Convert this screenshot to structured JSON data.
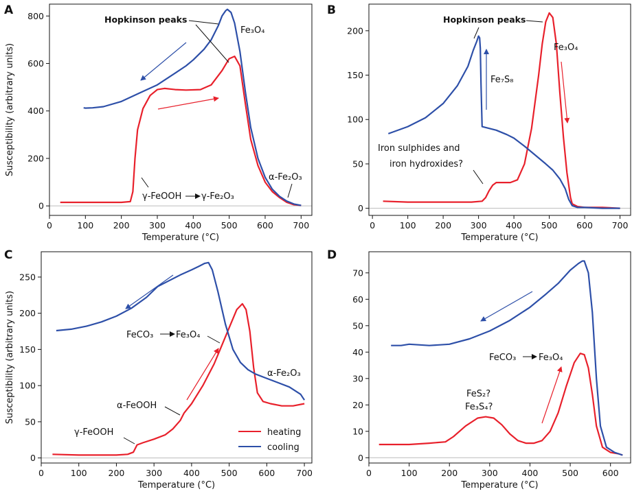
{
  "colors": {
    "heating": "#e8202b",
    "cooling": "#2d4fa8",
    "zero": "#bbbbbb"
  },
  "chart_data": [
    {
      "panel": "A",
      "type": "line",
      "xlabel": "Temperature (°C)",
      "ylabel": "Susceptibility (arbitrary units)",
      "xlim": [
        0,
        730
      ],
      "ylim": [
        -40,
        850
      ],
      "xticks": [
        0,
        100,
        200,
        300,
        400,
        500,
        600,
        700
      ],
      "yticks": [
        0,
        200,
        400,
        600,
        800
      ],
      "series": [
        {
          "name": "heating",
          "color": "heating",
          "x": [
            30,
            100,
            200,
            225,
            232,
            238,
            245,
            260,
            280,
            300,
            320,
            350,
            380,
            420,
            450,
            480,
            500,
            515,
            530,
            545,
            560,
            580,
            600,
            620,
            640,
            660,
            680,
            700
          ],
          "y": [
            15,
            15,
            15,
            18,
            60,
            200,
            320,
            410,
            465,
            490,
            495,
            490,
            488,
            490,
            510,
            570,
            620,
            630,
            590,
            430,
            280,
            170,
            100,
            60,
            35,
            15,
            5,
            2
          ]
        },
        {
          "name": "cooling",
          "color": "cooling",
          "x": [
            95,
            100,
            120,
            150,
            200,
            250,
            300,
            350,
            380,
            400,
            430,
            450,
            470,
            480,
            490,
            495,
            505,
            515,
            530,
            545,
            560,
            580,
            600,
            620,
            640,
            660,
            680,
            700
          ],
          "y": [
            413,
            412,
            413,
            418,
            440,
            475,
            510,
            560,
            590,
            615,
            660,
            700,
            760,
            800,
            822,
            828,
            815,
            770,
            650,
            480,
            330,
            200,
            120,
            70,
            40,
            20,
            8,
            2
          ]
        }
      ],
      "annotations": {
        "hopkinson": "Hopkinson peaks",
        "fe3o4": "Fe₃O₄",
        "gamma_label": "γ-FeOOH",
        "gamma_product": "γ-Fe₂O₃",
        "alpha": "α-Fe₂O₃"
      }
    },
    {
      "panel": "B",
      "type": "line",
      "xlabel": "Temperature (°C)",
      "ylabel": "",
      "xlim": [
        -10,
        730
      ],
      "ylim": [
        -8,
        230
      ],
      "xticks": [
        0,
        100,
        200,
        300,
        400,
        500,
        600,
        700
      ],
      "yticks": [
        0,
        50,
        100,
        150,
        200
      ],
      "series": [
        {
          "name": "heating",
          "color": "heating",
          "x": [
            30,
            100,
            200,
            280,
            310,
            320,
            330,
            340,
            350,
            370,
            390,
            410,
            430,
            450,
            470,
            480,
            490,
            500,
            510,
            520,
            530,
            540,
            550,
            560,
            565,
            580,
            600,
            650,
            700
          ],
          "y": [
            8,
            7,
            7,
            7,
            8,
            12,
            20,
            26,
            29,
            29,
            29,
            32,
            50,
            90,
            150,
            185,
            210,
            220,
            215,
            185,
            130,
            80,
            40,
            12,
            5,
            2,
            1,
            1,
            0
          ]
        },
        {
          "name": "cooling",
          "color": "cooling",
          "x": [
            45,
            100,
            150,
            200,
            240,
            270,
            285,
            295,
            300,
            303,
            305,
            307,
            310,
            330,
            350,
            380,
            400,
            430,
            460,
            490,
            510,
            530,
            545,
            555,
            565,
            580,
            600,
            650,
            700
          ],
          "y": [
            84,
            92,
            102,
            118,
            138,
            160,
            178,
            188,
            194,
            192,
            180,
            140,
            92,
            90,
            88,
            83,
            79,
            70,
            60,
            50,
            43,
            33,
            22,
            10,
            3,
            1,
            1,
            0,
            0
          ]
        }
      ],
      "annotations": {
        "hopkinson": "Hopkinson peaks",
        "fe7s8": "Fe₇S₈",
        "fe3o4": "Fe₃O₄",
        "sulphides_line1": "Iron sulphides and",
        "sulphides_line2": "iron hydroxides?"
      }
    },
    {
      "panel": "C",
      "type": "line",
      "xlabel": "Temperature (°C)",
      "ylabel": "Susceptibility (arbitrary units)",
      "xlim": [
        0,
        720
      ],
      "ylim": [
        -7,
        285
      ],
      "xticks": [
        0,
        100,
        200,
        300,
        400,
        500,
        600,
        700
      ],
      "yticks": [
        0,
        50,
        100,
        150,
        200,
        250
      ],
      "series": [
        {
          "name": "heating",
          "color": "heating",
          "x": [
            30,
            100,
            150,
            200,
            230,
            245,
            255,
            270,
            300,
            330,
            350,
            370,
            380,
            400,
            430,
            460,
            480,
            500,
            520,
            535,
            545,
            555,
            565,
            575,
            590,
            610,
            640,
            670,
            700
          ],
          "y": [
            5,
            4,
            4,
            4,
            5,
            8,
            18,
            21,
            26,
            32,
            40,
            52,
            62,
            75,
            100,
            130,
            155,
            180,
            205,
            213,
            205,
            175,
            125,
            90,
            78,
            75,
            72,
            72,
            75
          ]
        },
        {
          "name": "cooling",
          "color": "cooling",
          "x": [
            40,
            80,
            120,
            160,
            200,
            240,
            280,
            310,
            340,
            370,
            400,
            420,
            435,
            445,
            455,
            470,
            490,
            510,
            530,
            550,
            570,
            600,
            630,
            660,
            690,
            700
          ],
          "y": [
            176,
            178,
            182,
            188,
            196,
            207,
            222,
            237,
            245,
            253,
            260,
            265,
            269,
            270,
            260,
            230,
            185,
            150,
            132,
            122,
            116,
            110,
            104,
            98,
            88,
            80
          ]
        }
      ],
      "annotations": {
        "feco3": "FeCO₃",
        "fe3o4": "Fe₃O₄",
        "alpha_fe2o3": "α-Fe₂O₃",
        "alpha_feooh": "α-FeOOH",
        "gamma_feooh": "γ-FeOOH"
      },
      "legend": {
        "placement": "lower-right",
        "entries": [
          "heating",
          "cooling"
        ]
      }
    },
    {
      "panel": "D",
      "type": "line",
      "xlabel": "Temperature (°C)",
      "ylabel": "",
      "xlim": [
        0,
        650
      ],
      "ylim": [
        -2,
        78
      ],
      "xticks": [
        0,
        100,
        200,
        300,
        400,
        500,
        600
      ],
      "yticks": [
        0,
        10,
        20,
        30,
        40,
        50,
        60,
        70
      ],
      "series": [
        {
          "name": "heating",
          "color": "heating",
          "x": [
            25,
            100,
            150,
            190,
            210,
            240,
            270,
            290,
            310,
            330,
            350,
            370,
            390,
            410,
            430,
            450,
            470,
            490,
            510,
            525,
            535,
            545,
            555,
            565,
            580,
            600,
            620,
            630
          ],
          "y": [
            5,
            5,
            5.5,
            6,
            8,
            12,
            15,
            15.5,
            15,
            12.5,
            9,
            6.5,
            5.5,
            5.5,
            6.5,
            10,
            17,
            27,
            36,
            39.5,
            39,
            34,
            24,
            12,
            4,
            2,
            1.5,
            1
          ]
        },
        {
          "name": "cooling",
          "color": "cooling",
          "x": [
            55,
            80,
            100,
            150,
            200,
            250,
            300,
            350,
            400,
            440,
            470,
            500,
            520,
            530,
            535,
            545,
            555,
            565,
            575,
            590,
            610,
            630
          ],
          "y": [
            42.5,
            42.5,
            43,
            42.5,
            43,
            45,
            48,
            52,
            57,
            62,
            66,
            71,
            73.5,
            74.5,
            74.5,
            70,
            55,
            30,
            12,
            4,
            2,
            1
          ]
        }
      ],
      "annotations": {
        "feco3": "FeCO₃",
        "fe3o4": "Fe₃O₄",
        "fes2": "FeS₂?",
        "fe3s4": "Fe₃S₄?"
      }
    }
  ]
}
